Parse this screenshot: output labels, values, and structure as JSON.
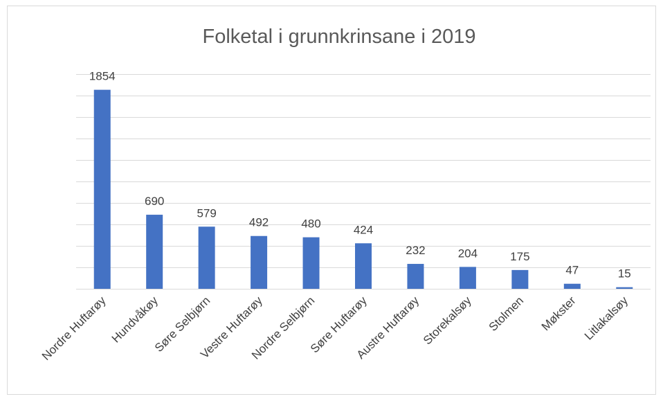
{
  "chart_data": {
    "type": "bar",
    "title": "Folketal i grunnkrinsane i 2019",
    "categories": [
      "Nordre Huftarøy",
      "Hundvåkøy",
      "Søre Selbjørn",
      "Vestre Huftarøy",
      "Nordre Selbjørn",
      "Søre Huftarøy",
      "Austre Huftarøy",
      "Storekalsøy",
      "Stolmen",
      "Møkster",
      "Litlakalsøy"
    ],
    "values": [
      1854,
      690,
      579,
      492,
      480,
      424,
      232,
      204,
      175,
      47,
      15
    ],
    "color": "#4472c4",
    "ylim": [
      0,
      2000
    ],
    "yticks": [
      0,
      200,
      400,
      600,
      800,
      1000,
      1200,
      1400,
      1600,
      1800,
      2000
    ],
    "grid": true
  }
}
